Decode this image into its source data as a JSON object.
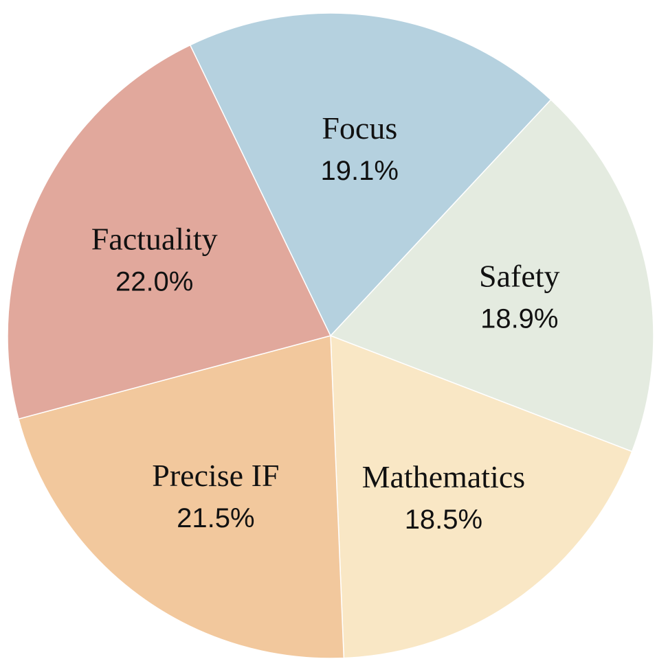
{
  "chart_data": {
    "type": "pie",
    "title": "",
    "start_angle_deg": 43,
    "direction": "clockwise",
    "slices": [
      {
        "label": "Safety",
        "value": 18.9,
        "display": "18.9%",
        "color": "#e4ebe0"
      },
      {
        "label": "Mathematics",
        "value": 18.5,
        "display": "18.5%",
        "color": "#f9e7c5"
      },
      {
        "label": "Precise IF",
        "value": 21.5,
        "display": "21.5%",
        "color": "#f2c89d"
      },
      {
        "label": "Factuality",
        "value": 22.0,
        "display": "22.0%",
        "color": "#e1a89c"
      },
      {
        "label": "Focus",
        "value": 19.1,
        "display": "19.1%",
        "color": "#b5d1df"
      }
    ]
  }
}
